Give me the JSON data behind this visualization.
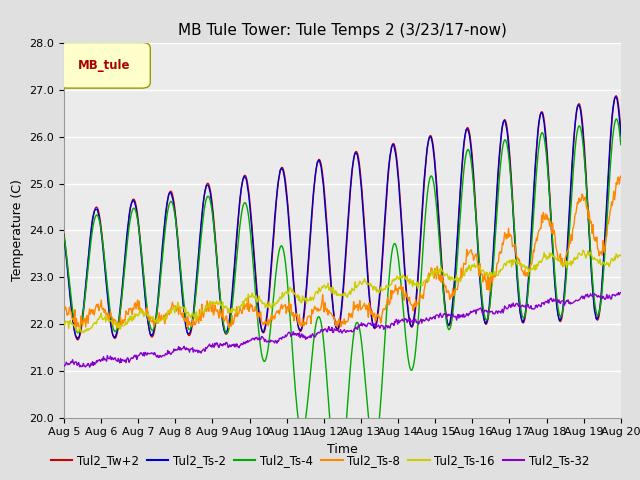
{
  "title": "MB Tule Tower: Tule Temps 2 (3/23/17-now)",
  "xlabel": "Time",
  "ylabel": "Temperature (C)",
  "ylim": [
    20.0,
    28.0
  ],
  "yticks": [
    20.0,
    21.0,
    22.0,
    23.0,
    24.0,
    25.0,
    26.0,
    27.0,
    28.0
  ],
  "xtick_labels": [
    "Aug 5",
    "Aug 6",
    "Aug 7",
    "Aug 8",
    "Aug 9",
    "Aug 10",
    "Aug 11",
    "Aug 12",
    "Aug 13",
    "Aug 14",
    "Aug 15",
    "Aug 16",
    "Aug 17",
    "Aug 18",
    "Aug 19",
    "Aug 20"
  ],
  "legend_label": "MB_tule",
  "series_names": [
    "Tul2_Tw+2",
    "Tul2_Ts-2",
    "Tul2_Ts-4",
    "Tul2_Ts-8",
    "Tul2_Ts-16",
    "Tul2_Ts-32"
  ],
  "series_colors": [
    "#cc0000",
    "#0000cc",
    "#00aa00",
    "#ff8800",
    "#cccc00",
    "#8800cc"
  ],
  "background_color": "#e0e0e0",
  "plot_bg_color": "#ebebeb",
  "title_fontsize": 11,
  "axis_fontsize": 9,
  "tick_fontsize": 8,
  "legend_fontsize": 8.5
}
